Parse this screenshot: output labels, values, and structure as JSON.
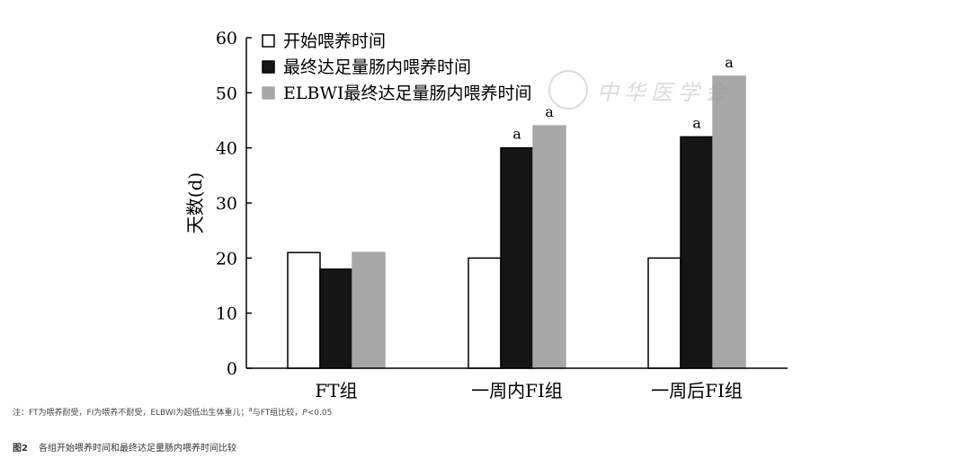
{
  "chart_data": {
    "type": "bar",
    "categories": [
      "FT组",
      "一周内FI组",
      "一周后FI组"
    ],
    "series": [
      {
        "name": "开始喂养时间",
        "values": [
          21,
          20,
          20
        ],
        "color": "#ffffff",
        "stroke": "#000000"
      },
      {
        "name": "最终达足量肠内喂养时间",
        "values": [
          18,
          40,
          42
        ],
        "color": "#151515",
        "stroke": "#000000"
      },
      {
        "name": "ELBWI最终达足量肠内喂养时间",
        "values": [
          21,
          44,
          53
        ],
        "color": "#a7a7a7",
        "stroke": "#a7a7a7"
      }
    ],
    "annotations": [
      {
        "category_index": 1,
        "series_index": 1,
        "text": "a"
      },
      {
        "category_index": 1,
        "series_index": 2,
        "text": "a"
      },
      {
        "category_index": 2,
        "series_index": 1,
        "text": "a"
      },
      {
        "category_index": 2,
        "series_index": 2,
        "text": "a"
      }
    ],
    "ylabel": "天数(d)",
    "xlabel": "",
    "ylim": [
      0,
      60
    ],
    "yticks": [
      0,
      10,
      20,
      30,
      40,
      50,
      60
    ],
    "grid": false,
    "legend_position": "top-left"
  },
  "note": {
    "prefix": "注：FT为喂养耐受，FI为喂养不耐受，ELBWI为超低出生体重儿；",
    "sup": "a",
    "mid": "与FT组比较，",
    "p_symbol": "P",
    "suffix": "<0.05"
  },
  "caption": {
    "label": "图2",
    "text": "各组开始喂养时间和最终达足量肠内喂养时间比较"
  },
  "watermark": {
    "text": "中华医学会"
  }
}
